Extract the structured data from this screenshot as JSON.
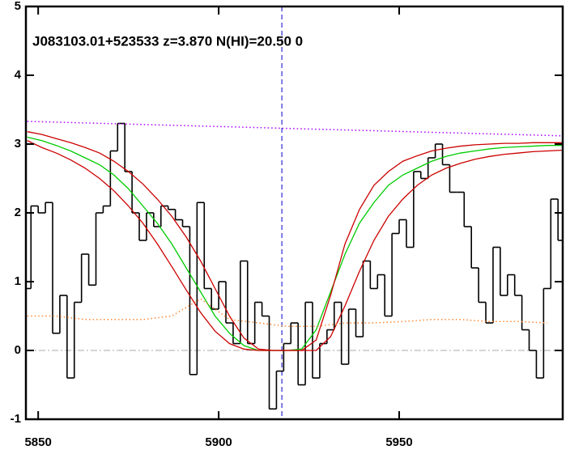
{
  "chart_data": {
    "type": "spectrum",
    "annotation": "J083103.01+523533 z=3.870 N(HI)=20.50 0",
    "xlim": [
      5846.6,
      5995.3
    ],
    "ylim": [
      -1,
      5
    ],
    "xticks": [
      5850,
      5900,
      5950
    ],
    "yticks": [
      -1,
      0,
      1,
      2,
      3,
      4,
      5
    ],
    "zero_line": 0,
    "zero_line_color": "#aaaaaa",
    "marker_x": 5917.5,
    "marker_color": "#0000cc",
    "series": [
      {
        "style": "step",
        "color": "#000000",
        "x": [
          5847,
          5849,
          5851,
          5853,
          5855,
          5857,
          5859,
          5861,
          5863,
          5865,
          5867,
          5869,
          5871,
          5873,
          5875,
          5877,
          5879,
          5881,
          5883,
          5885,
          5887,
          5889,
          5891,
          5893,
          5895,
          5897,
          5899,
          5901,
          5903,
          5905,
          5907,
          5909,
          5911,
          5913,
          5915,
          5917,
          5919,
          5921,
          5923,
          5925,
          5927,
          5929,
          5931,
          5933,
          5935,
          5937,
          5939,
          5941,
          5943,
          5945,
          5947,
          5949,
          5951,
          5953,
          5955,
          5957,
          5959,
          5961,
          5963,
          5965,
          5967,
          5969,
          5971,
          5973,
          5975,
          5977,
          5979,
          5981,
          5983,
          5985,
          5987,
          5989,
          5991,
          5993,
          5995
        ],
        "values": [
          0.9,
          2.1,
          2.0,
          2.15,
          0.25,
          0.8,
          -0.4,
          0.7,
          1.4,
          0.95,
          2.0,
          2.1,
          2.9,
          3.3,
          2.6,
          2.0,
          1.6,
          2.0,
          1.8,
          2.1,
          2.05,
          1.9,
          1.8,
          -0.35,
          2.15,
          0.9,
          0.6,
          1.0,
          0.4,
          0.1,
          1.3,
          0.1,
          0.7,
          0.5,
          -0.85,
          -0.3,
          0.1,
          0.4,
          -0.5,
          0.7,
          -0.4,
          0.1,
          0.3,
          0.7,
          -0.2,
          0.6,
          0.2,
          1.3,
          0.9,
          1.1,
          0.5,
          1.7,
          1.9,
          1.5,
          2.6,
          2.5,
          2.8,
          3.0,
          2.7,
          2.3,
          2.3,
          1.8,
          1.2,
          0.7,
          0.4,
          1.5,
          0.8,
          1.1,
          0.8,
          0.3,
          0.0,
          -0.4,
          0.9,
          2.2,
          1.6
        ]
      },
      {
        "style": "solid",
        "color": "#00cc00",
        "x": [
          5847,
          5851,
          5855,
          5859,
          5863,
          5867,
          5871,
          5875,
          5879,
          5883,
          5887,
          5891,
          5895,
          5899,
          5903,
          5907,
          5911,
          5915,
          5919,
          5923,
          5927,
          5931,
          5935,
          5939,
          5943,
          5947,
          5951,
          5955,
          5959,
          5963,
          5967,
          5971,
          5975,
          5979,
          5983,
          5987,
          5991,
          5995
        ],
        "values": [
          3.1,
          3.05,
          2.98,
          2.9,
          2.8,
          2.7,
          2.55,
          2.35,
          2.1,
          1.85,
          1.55,
          1.2,
          0.85,
          0.5,
          0.25,
          0.07,
          0,
          0,
          0,
          0.02,
          0.3,
          0.85,
          1.4,
          1.85,
          2.15,
          2.4,
          2.55,
          2.65,
          2.75,
          2.82,
          2.87,
          2.9,
          2.93,
          2.95,
          2.96,
          2.97,
          2.98,
          2.98
        ]
      },
      {
        "style": "solid",
        "color": "#cc0000",
        "x": [
          5847,
          5851,
          5855,
          5859,
          5863,
          5867,
          5871,
          5875,
          5879,
          5883,
          5887,
          5891,
          5895,
          5899,
          5903,
          5907,
          5911,
          5915,
          5919,
          5923,
          5927,
          5931,
          5935,
          5939,
          5943,
          5947,
          5951,
          5955,
          5959,
          5963,
          5967,
          5971,
          5975,
          5979,
          5983,
          5987,
          5991,
          5995
        ],
        "values": [
          3.18,
          3.14,
          3.08,
          3.02,
          2.95,
          2.87,
          2.75,
          2.6,
          2.42,
          2.2,
          1.95,
          1.65,
          1.3,
          0.9,
          0.5,
          0.18,
          0.02,
          0,
          0,
          0,
          0.15,
          0.8,
          1.55,
          2.05,
          2.4,
          2.6,
          2.75,
          2.83,
          2.9,
          2.94,
          2.97,
          2.99,
          3.0,
          3.01,
          3.01,
          3.02,
          3.02,
          3.02
        ]
      },
      {
        "style": "solid",
        "color": "#cc0000",
        "x": [
          5847,
          5851,
          5855,
          5859,
          5863,
          5867,
          5871,
          5875,
          5879,
          5883,
          5887,
          5891,
          5895,
          5899,
          5903,
          5907,
          5911,
          5915,
          5919,
          5923,
          5927,
          5931,
          5935,
          5939,
          5943,
          5947,
          5951,
          5955,
          5959,
          5963,
          5967,
          5971,
          5975,
          5979,
          5983,
          5987,
          5991,
          5995
        ],
        "values": [
          3.05,
          2.95,
          2.87,
          2.77,
          2.65,
          2.5,
          2.32,
          2.1,
          1.85,
          1.55,
          1.22,
          0.88,
          0.55,
          0.28,
          0.1,
          0.02,
          0,
          0,
          0,
          0,
          0,
          0.2,
          0.65,
          1.15,
          1.6,
          1.95,
          2.2,
          2.4,
          2.55,
          2.65,
          2.72,
          2.78,
          2.82,
          2.85,
          2.87,
          2.89,
          2.9,
          2.91
        ]
      },
      {
        "style": "dotted",
        "color": "#aa00ff",
        "x": [
          5847,
          5995
        ],
        "values": [
          3.33,
          3.12
        ]
      },
      {
        "style": "dotted",
        "color": "#ff8833",
        "x": [
          5847,
          5855,
          5863,
          5871,
          5879,
          5887,
          5895,
          5903,
          5911,
          5919,
          5927,
          5935,
          5943,
          5951,
          5959,
          5967,
          5975,
          5983,
          5991
        ],
        "values": [
          0.5,
          0.5,
          0.45,
          0.45,
          0.45,
          0.5,
          0.75,
          0.45,
          0.4,
          0.35,
          0.35,
          0.4,
          0.4,
          0.42,
          0.45,
          0.45,
          0.42,
          0.42,
          0.4
        ]
      }
    ]
  }
}
